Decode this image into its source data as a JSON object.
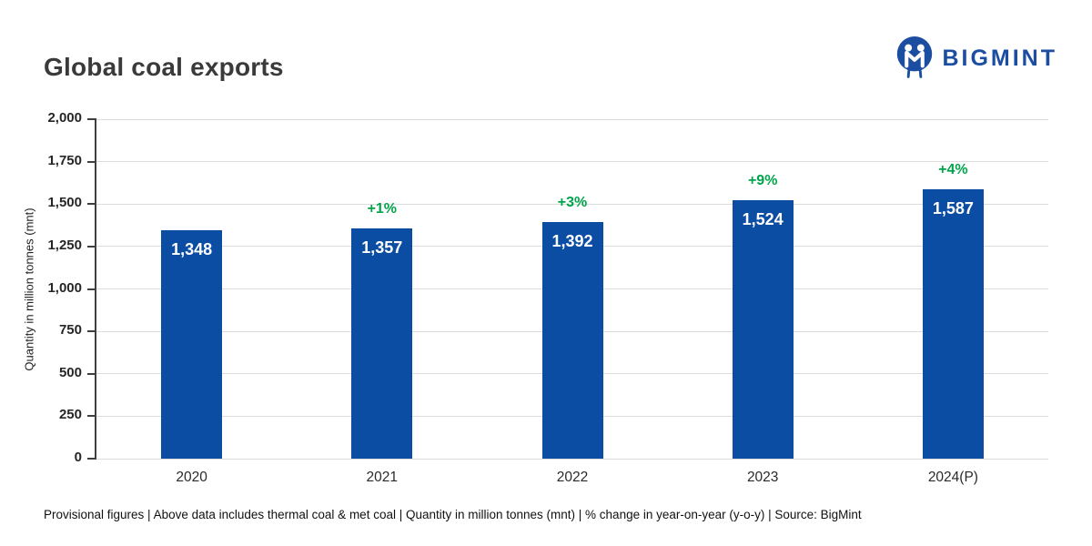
{
  "header": {
    "title": "Global coal exports",
    "logo_text": "BIGMINT"
  },
  "chart_data": {
    "type": "bar",
    "title": "Global coal exports",
    "categories": [
      "2020",
      "2021",
      "2022",
      "2023",
      "2024(P)"
    ],
    "values": [
      1348,
      1357,
      1392,
      1524,
      1587
    ],
    "value_labels": [
      "1,348",
      "1,357",
      "1,392",
      "1,524",
      "1,587"
    ],
    "pct_change_labels": [
      "",
      "+1%",
      "+3%",
      "+9%",
      "+4%"
    ],
    "xlabel": "",
    "ylabel": "Quantity in million tonnes (mnt)",
    "ylim": [
      0,
      2000
    ],
    "ytick_step": 250,
    "ytick_labels": [
      "0",
      "250",
      "500",
      "750",
      "1,000",
      "1,250",
      "1,500",
      "1,750",
      "2,000"
    ],
    "grid": true,
    "legend": false
  },
  "footer": {
    "note": "Provisional figures | Above data includes thermal coal & met coal | Quantity in million tonnes (mnt) | % change in year-on-year (y-o-y) | Source: BigMint"
  },
  "colors": {
    "bar": "#0b4da2",
    "pct_change": "#00a44a",
    "logo": "#1b4da1",
    "title": "#3a3a3a",
    "axis": "#3f3f3f",
    "gridline": "#dcdcdc"
  }
}
